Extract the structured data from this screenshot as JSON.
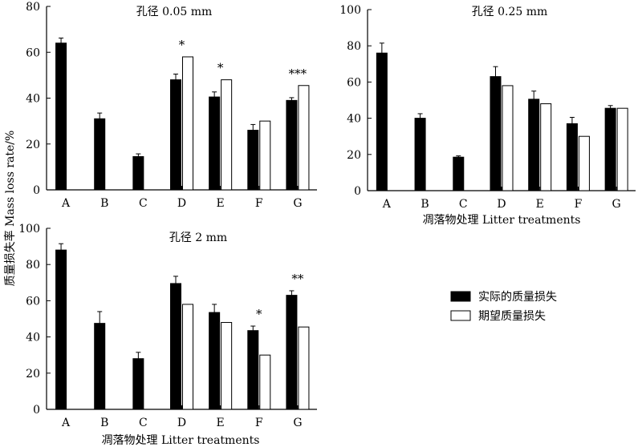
{
  "y_axis_label": "质量损失率 Mass loss rate/%",
  "legend": {
    "actual": "实际的质量损失",
    "expected": "期望质量损失"
  },
  "colors": {
    "actual": "#000000",
    "expected": "#ffffff",
    "stroke": "#000000"
  },
  "chart_data": [
    {
      "type": "bar",
      "title": "孔径 0.05 mm",
      "categories": [
        "A",
        "B",
        "C",
        "D",
        "E",
        "F",
        "G"
      ],
      "ylim": [
        0,
        80
      ],
      "yticks": [
        0,
        20,
        40,
        60,
        80
      ],
      "xlabel": "",
      "series": [
        {
          "name": "实际的质量损失",
          "values": [
            64,
            31,
            14.5,
            48,
            40.5,
            26,
            39
          ],
          "errors": [
            2.2,
            2.5,
            1.2,
            2.5,
            2.2,
            2.5,
            1.2
          ]
        },
        {
          "name": "期望质量损失",
          "values": [
            null,
            null,
            null,
            58,
            48,
            30,
            45.5
          ],
          "errors": [
            null,
            null,
            null,
            null,
            null,
            null,
            null
          ]
        }
      ],
      "annotations": [
        "",
        "",
        "",
        "*",
        "*",
        "",
        "***"
      ]
    },
    {
      "type": "bar",
      "title": "孔径 0.25 mm",
      "categories": [
        "A",
        "B",
        "C",
        "D",
        "E",
        "F",
        "G"
      ],
      "ylim": [
        0,
        100
      ],
      "yticks": [
        0,
        20,
        40,
        60,
        80,
        100
      ],
      "xlabel": "凋落物处理 Litter treatments",
      "series": [
        {
          "name": "实际的质量损失",
          "values": [
            76,
            40,
            18.5,
            63,
            50.5,
            37,
            45.5
          ],
          "errors": [
            5.5,
            2.5,
            0.7,
            5.5,
            4.5,
            3.5,
            1.5
          ]
        },
        {
          "name": "期望质量损失",
          "values": [
            null,
            null,
            null,
            58,
            48,
            30,
            45.5
          ],
          "errors": [
            null,
            null,
            null,
            null,
            null,
            null,
            null
          ]
        }
      ],
      "annotations": [
        "",
        "",
        "",
        "",
        "",
        "",
        ""
      ]
    },
    {
      "type": "bar",
      "title": "孔径 2 mm",
      "categories": [
        "A",
        "B",
        "C",
        "D",
        "E",
        "F",
        "G"
      ],
      "ylim": [
        0,
        100
      ],
      "yticks": [
        0,
        20,
        40,
        60,
        80,
        100
      ],
      "xlabel": "凋落物处理 Litter treatments",
      "series": [
        {
          "name": "实际的质量损失",
          "values": [
            88,
            47.5,
            28,
            69.5,
            53.5,
            43.5,
            63
          ],
          "errors": [
            3.5,
            6.5,
            3.5,
            4,
            4.5,
            2.5,
            2.5
          ]
        },
        {
          "name": "期望质量损失",
          "values": [
            null,
            null,
            null,
            58,
            48,
            30,
            45.5
          ],
          "errors": [
            null,
            null,
            null,
            null,
            null,
            null,
            null
          ]
        }
      ],
      "annotations": [
        "",
        "",
        "",
        "",
        "",
        "*",
        "**"
      ]
    }
  ]
}
